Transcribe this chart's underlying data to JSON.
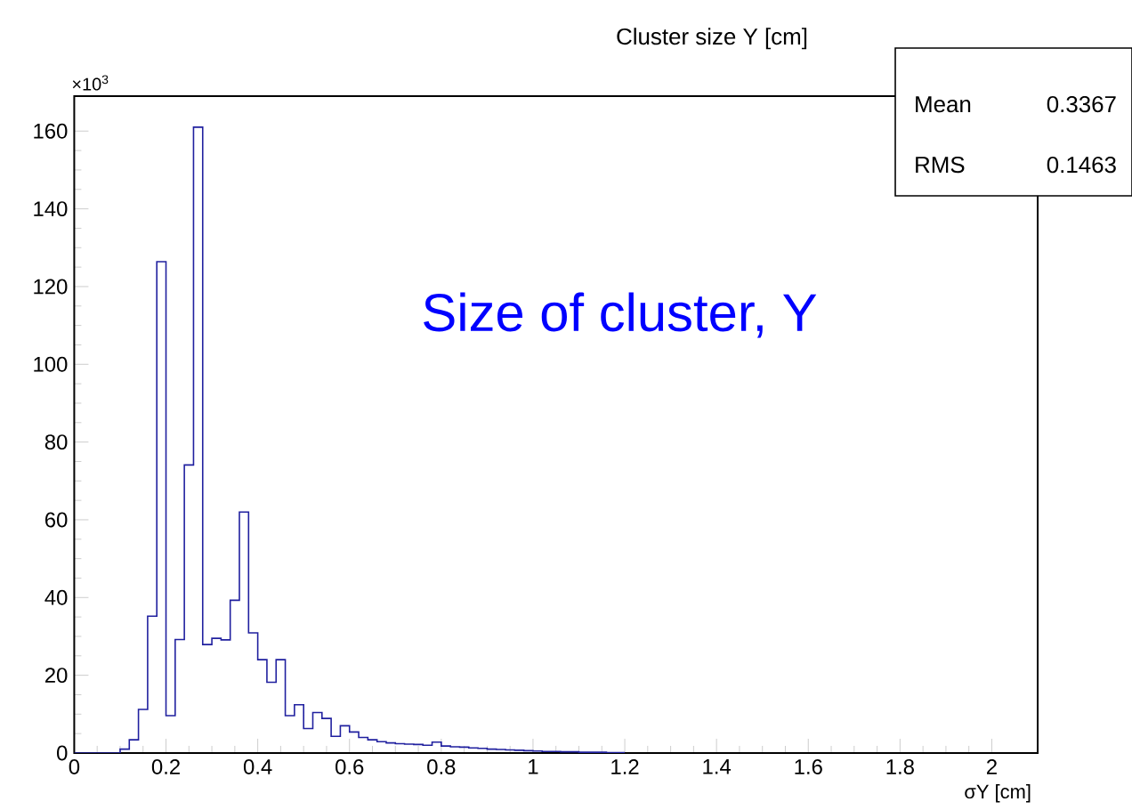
{
  "chart_data": {
    "type": "histogram",
    "title": "Cluster size Y [cm]",
    "xlabel": "σY [cm]",
    "annotations": [
      "×10$^{3}$",
      "Size of cluster, Y",
      "Mean",
      "0.3367",
      "RMS",
      "0.1463"
    ],
    "color": "#20209f",
    "bins": [
      0,
      0.02,
      0.04,
      0.06,
      0.08,
      0.1,
      0.12,
      0.14,
      0.16,
      0.18,
      0.2,
      0.22,
      0.24,
      0.26,
      0.28,
      0.3,
      0.32,
      0.34,
      0.36,
      0.38,
      0.4,
      0.42,
      0.44,
      0.46,
      0.48,
      0.5,
      0.52,
      0.54,
      0.56,
      0.58,
      0.6,
      0.62,
      0.64,
      0.66,
      0.68,
      0.7,
      0.72,
      0.74,
      0.76,
      0.78,
      0.8,
      0.82,
      0.84,
      0.86,
      0.88,
      0.9,
      0.92,
      0.94,
      0.96,
      0.98,
      1.0,
      1.02,
      1.04,
      1.06,
      1.08,
      1.1,
      1.12,
      1.14,
      1.16,
      1.18,
      1.2
    ],
    "values": [
      0,
      0,
      0,
      0,
      0,
      1,
      3.4,
      11.2,
      35.2,
      126.4,
      9.6,
      29.2,
      74.1,
      161,
      27.9,
      29.5,
      29.1,
      39.3,
      62,
      30.9,
      24,
      18.2,
      24,
      9.6,
      12.4,
      6.3,
      10.4,
      8.9,
      4.3,
      7.0,
      5.4,
      4.0,
      3.4,
      2.9,
      2.6,
      2.4,
      2.3,
      2.2,
      2.0,
      2.8,
      1.8,
      1.6,
      1.5,
      1.3,
      1.2,
      1.0,
      0.9,
      0.8,
      0.7,
      0.6,
      0.5,
      0.4,
      0.4,
      0.3,
      0.3,
      0.2,
      0.2,
      0.2,
      0.1,
      0.1
    ],
    "xlim": [
      0,
      2.1
    ],
    "ylim": [
      0,
      169
    ],
    "xticks": [
      0,
      0.2,
      0.4,
      0.6,
      0.8,
      1,
      1.2,
      1.4,
      1.6,
      1.8,
      2
    ],
    "yticks": [
      0,
      20,
      40,
      60,
      80,
      100,
      120,
      140,
      160
    ]
  }
}
